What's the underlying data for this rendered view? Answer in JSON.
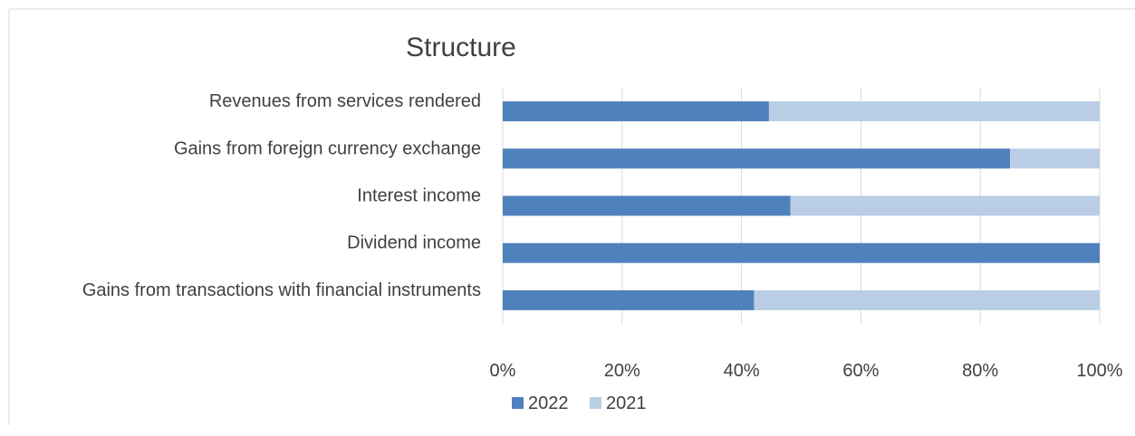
{
  "chart_data": {
    "type": "bar",
    "orientation": "horizontal",
    "stacked": "percent",
    "title": "Structure",
    "categories": [
      "Revenues from services rendered",
      "Gains from forejgn currency exchange",
      "Interest income",
      "Dividend income",
      "Gains from transactions with financial instruments"
    ],
    "series": [
      {
        "name": "2022",
        "color": "#4f81bd",
        "values": [
          44.6,
          85.0,
          48.2,
          100.0,
          42.1
        ]
      },
      {
        "name": "2021",
        "color": "#b9cde5",
        "values": [
          55.4,
          15.0,
          51.8,
          0.0,
          57.9
        ]
      }
    ],
    "xlim": [
      0,
      100
    ],
    "x_ticks": [
      "0%",
      "20%",
      "40%",
      "60%",
      "80%",
      "100%"
    ],
    "grid": true,
    "legend_position": "bottom"
  }
}
